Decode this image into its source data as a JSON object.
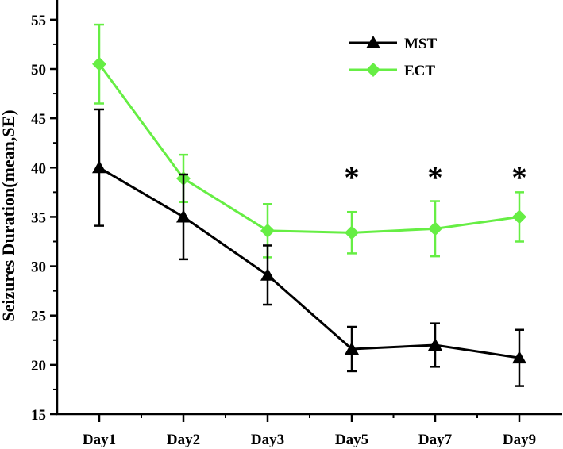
{
  "chart_data": {
    "type": "line",
    "title": "",
    "xlabel": "",
    "ylabel": "Seizures Duration(mean,SE)",
    "categories": [
      "Day1",
      "Day2",
      "Day3",
      "Day5",
      "Day7",
      "Day9"
    ],
    "ylim": [
      15,
      57
    ],
    "yticks": [
      15,
      20,
      25,
      30,
      35,
      40,
      45,
      50,
      55
    ],
    "grid": false,
    "legend_position": "top-right",
    "series": [
      {
        "name": "MST",
        "color": "#000000",
        "marker": "triangle",
        "values": [
          40.0,
          35.0,
          29.1,
          21.6,
          22.0,
          20.7
        ],
        "errors": [
          5.9,
          4.3,
          3.0,
          2.25,
          2.2,
          2.85
        ]
      },
      {
        "name": "ECT",
        "color": "#66ee44",
        "marker": "diamond",
        "values": [
          50.5,
          38.9,
          33.6,
          33.4,
          33.8,
          35.0
        ],
        "errors": [
          4.0,
          2.4,
          2.7,
          2.1,
          2.8,
          2.5
        ]
      }
    ],
    "annotations": [
      {
        "text": "*",
        "category": "Day5"
      },
      {
        "text": "*",
        "category": "Day7"
      },
      {
        "text": "*",
        "category": "Day9"
      }
    ]
  }
}
